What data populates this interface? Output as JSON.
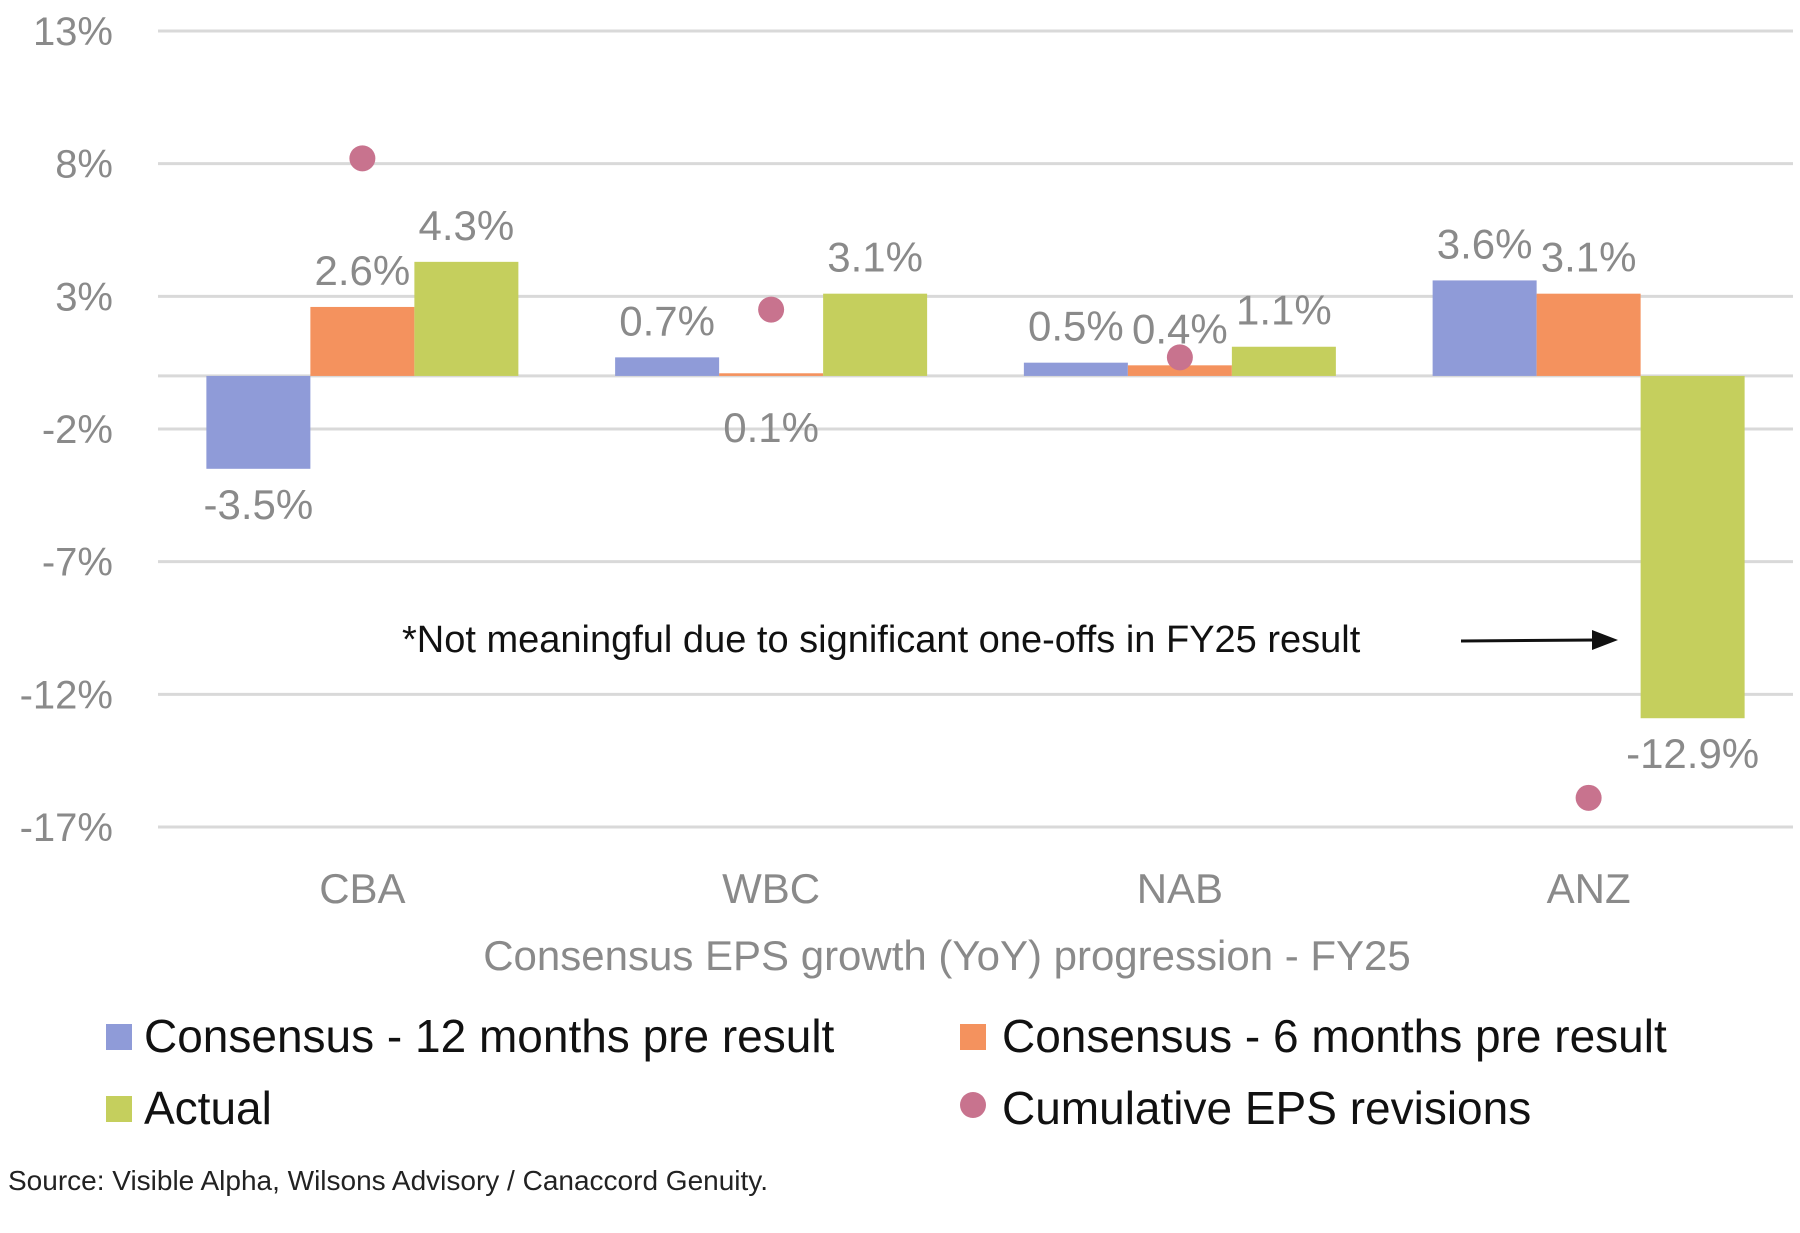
{
  "chart_data": {
    "type": "bar",
    "xlabel": "Consensus EPS growth (YoY) progression - FY25",
    "ylabel": "",
    "categories": [
      "CBA",
      "WBC",
      "NAB",
      "ANZ"
    ],
    "ylim": [
      -17,
      13
    ],
    "yticks": [
      13,
      8,
      3,
      -2,
      -7,
      -12,
      -17
    ],
    "ytick_labels": [
      "13%",
      "8%",
      "3%",
      "-2%",
      "-7%",
      "-12%",
      "-17%"
    ],
    "grid": true,
    "legend_placement": "bottom",
    "series": [
      {
        "name": "Consensus - 12 months pre result",
        "type": "bar",
        "color": "#8f9bd8",
        "values": [
          -3.5,
          0.7,
          0.5,
          3.6
        ],
        "labels": [
          "-3.5%",
          "0.7%",
          "0.5%",
          "3.6%"
        ]
      },
      {
        "name": "Consensus - 6 months pre result",
        "type": "bar",
        "color": "#f4925e",
        "values": [
          2.6,
          0.1,
          0.4,
          3.1
        ],
        "labels": [
          "2.6%",
          "0.1%",
          "0.4%",
          "3.1%"
        ]
      },
      {
        "name": "Actual",
        "type": "bar",
        "color": "#c5cf5d",
        "values": [
          4.3,
          3.1,
          1.1,
          -12.9
        ],
        "labels": [
          "4.3%",
          "3.1%",
          "1.1%",
          "-12.9%"
        ]
      },
      {
        "name": "Cumulative EPS revisions",
        "type": "scatter",
        "color": "#c8738e",
        "values": [
          8.2,
          2.5,
          0.7,
          -15.9
        ]
      }
    ],
    "annotation": "*Not meaningful due to significant one-offs in FY25 result"
  },
  "source": "Source: Visible Alpha, Wilsons Advisory / Canaccord Genuity."
}
